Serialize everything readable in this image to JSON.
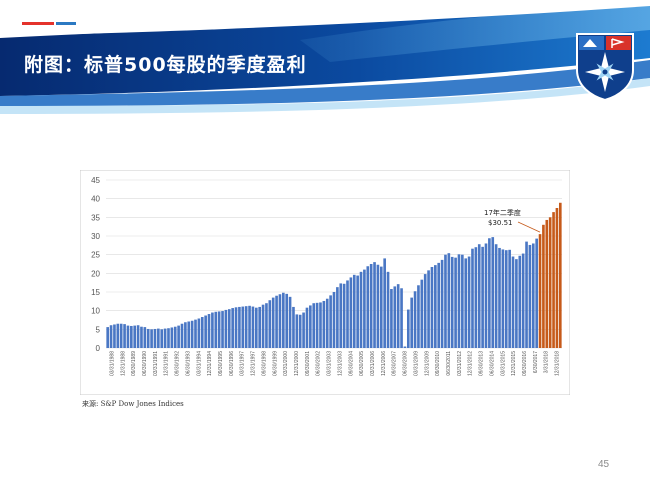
{
  "slide": {
    "title": "附图：标普500每股的季度盈利",
    "source": "来源: S&P Dow Jones Indices",
    "page_number": "45"
  },
  "colors": {
    "header_dark": "#0a3a86",
    "header_light": "#4aa3e0",
    "bar_actual": "#4a77c4",
    "bar_estimate": "#c65a1a",
    "accent_red": "#e4322b",
    "accent_blue": "#2b79c2"
  },
  "icons": [
    "logo-shield-icon",
    "compass-star-icon",
    "flag-icon"
  ],
  "chart_data": {
    "type": "bar",
    "title": "",
    "xlabel": "",
    "ylabel": "",
    "ylim": [
      0,
      45
    ],
    "yticks": [
      0,
      5,
      10,
      15,
      20,
      25,
      30,
      35,
      40,
      45
    ],
    "grid": true,
    "legend": "none",
    "x_tick_labels": [
      "03/31/1988",
      "12/31/1988",
      "09/30/1989",
      "06/30/1990",
      "03/31/1991",
      "12/31/1991",
      "09/30/1992",
      "06/30/1993",
      "03/31/1994",
      "12/31/1994",
      "09/30/1995",
      "06/30/1996",
      "03/31/1997",
      "12/31/1997",
      "09/30/1998",
      "06/30/1999",
      "03/31/2000",
      "12/31/2000",
      "09/30/2001",
      "06/30/2002",
      "03/31/2003",
      "12/31/2003",
      "09/30/2004",
      "06/30/2005",
      "03/31/2006",
      "12/31/2006",
      "09/30/2007",
      "06/30/2008",
      "03/31/2009",
      "12/31/2009",
      "09/30/2010",
      "06/30/2011",
      "03/31/2012",
      "12/31/2012",
      "09/30/2013",
      "06/30/2014",
      "03/31/2015",
      "12/31/2015",
      "09/30/2016",
      "6/30/2017",
      "3/31/2018",
      "12/31/2018"
    ],
    "series": [
      {
        "values": [
          5.6,
          6.1,
          6.3,
          6.5,
          6.5,
          6.4,
          6.0,
          5.9,
          6.0,
          6.1,
          5.7,
          5.6,
          5.1,
          5.0,
          5.1,
          5.2,
          5.0,
          5.2,
          5.3,
          5.5,
          5.7,
          6.0,
          6.5,
          6.9,
          7.1,
          7.3,
          7.6,
          7.9,
          8.3,
          8.7,
          9.1,
          9.5,
          9.7,
          9.8,
          9.9,
          10.2,
          10.4,
          10.7,
          10.9,
          11.0,
          11.1,
          11.2,
          11.3,
          11.1,
          10.8,
          11.0,
          11.6,
          12.0,
          12.8,
          13.5,
          14.0,
          14.4,
          14.8,
          14.5,
          13.7,
          11.0,
          9.0,
          8.9,
          9.5,
          10.8,
          11.4,
          12.0,
          12.1,
          12.2,
          12.6,
          13.2,
          14.1,
          15.0,
          16.3,
          17.3,
          17.2,
          18.1,
          18.9,
          19.6,
          19.4,
          20.4,
          21.0,
          21.9,
          22.5,
          23.0,
          22.3,
          21.8,
          24.0,
          20.4,
          15.8,
          16.5,
          17.1,
          16.0,
          0.4,
          10.3,
          13.5,
          15.2,
          16.8,
          18.3,
          19.8,
          20.8,
          21.7,
          22.2,
          22.8,
          23.6,
          25.0,
          25.4,
          24.4,
          24.2,
          25.1,
          25.0,
          24.0,
          24.5,
          26.6,
          27.0,
          27.8,
          27.1,
          28.0,
          29.4,
          29.7,
          27.8,
          26.8,
          26.4,
          26.2,
          26.3,
          24.5,
          23.8,
          24.7,
          25.3,
          28.5,
          27.6,
          28.0,
          29.3
        ]
      },
      {
        "name": "17年二季度 $30.51",
        "values": [
          30.5,
          33.0,
          34.3,
          35.0,
          36.4,
          37.5,
          38.9
        ]
      }
    ],
    "annotations": [
      {
        "text_line1": "17年二季度",
        "text_line2": "$30.51"
      }
    ]
  }
}
